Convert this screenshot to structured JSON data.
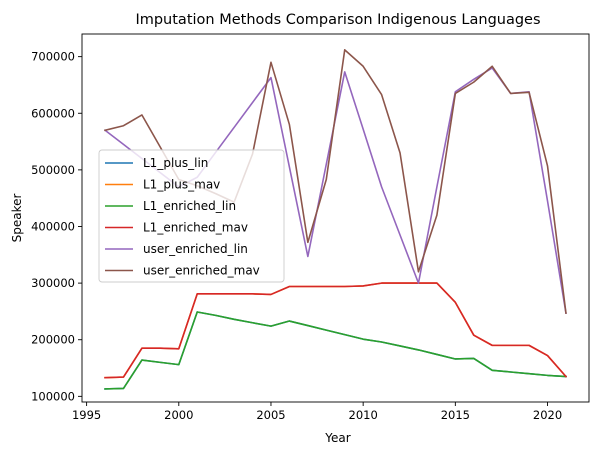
{
  "chart_data": {
    "type": "line",
    "title": "Imputation Methods Comparison Indigenous Languages",
    "xlabel": "Year",
    "ylabel": "Speaker",
    "xlim": [
      1994.75,
      2022.25
    ],
    "ylim": [
      90000,
      740000
    ],
    "xticks": [
      1995,
      2000,
      2005,
      2010,
      2015,
      2020
    ],
    "xtick_labels": [
      "1995",
      "2000",
      "2005",
      "2010",
      "2015",
      "2020"
    ],
    "yticks": [
      100000,
      200000,
      300000,
      400000,
      500000,
      600000,
      700000
    ],
    "ytick_labels": [
      "100000",
      "200000",
      "300000",
      "400000",
      "500000",
      "600000",
      "700000"
    ],
    "grid": false,
    "legend_position": "center-left",
    "x": [
      1996,
      1997,
      1998,
      1999,
      2000,
      2001,
      2002,
      2003,
      2004,
      2005,
      2006,
      2007,
      2008,
      2009,
      2010,
      2011,
      2012,
      2013,
      2014,
      2015,
      2016,
      2017,
      2018,
      2019,
      2020,
      2021
    ],
    "series": [
      {
        "name": "L1_plus_lin",
        "color": "#1f77b4",
        "values": [
          113000,
          114000,
          164000,
          160000,
          156000,
          249000,
          243000,
          236000,
          230000,
          224000,
          233000,
          225000,
          217000,
          209000,
          201000,
          196000,
          189000,
          182000,
          174000,
          166000,
          167000,
          146000,
          143000,
          140000,
          137000,
          135000
        ]
      },
      {
        "name": "L1_plus_mav",
        "color": "#ff7f0e",
        "values": [
          133000,
          134000,
          185000,
          185000,
          184000,
          281000,
          281000,
          281000,
          281000,
          280000,
          294000,
          294000,
          294000,
          294000,
          295000,
          300000,
          300000,
          300000,
          300000,
          266000,
          208000,
          190000,
          190000,
          190000,
          172000,
          135000
        ]
      },
      {
        "name": "L1_enriched_lin",
        "color": "#2ca02c",
        "values": [
          113000,
          114000,
          164000,
          160000,
          156000,
          249000,
          243000,
          236000,
          230000,
          224000,
          233000,
          225000,
          217000,
          209000,
          201000,
          196000,
          189000,
          182000,
          174000,
          166000,
          167000,
          146000,
          143000,
          140000,
          137000,
          135000
        ]
      },
      {
        "name": "L1_enriched_mav",
        "color": "#d62728",
        "values": [
          133000,
          134000,
          185000,
          185000,
          184000,
          281000,
          281000,
          281000,
          281000,
          280000,
          294000,
          294000,
          294000,
          294000,
          295000,
          300000,
          300000,
          300000,
          300000,
          266000,
          208000,
          190000,
          190000,
          190000,
          172000,
          135000
        ]
      },
      {
        "name": "user_enriched_lin",
        "color": "#9467bd",
        "values": [
          570000,
          545000,
          520000,
          495000,
          470000,
          487000,
          531000,
          575000,
          619000,
          663000,
          505000,
          347000,
          510000,
          673000,
          572000,
          470000,
          385000,
          300000,
          470000,
          638000,
          660000,
          680000,
          635000,
          638000,
          445000,
          247000
        ]
      },
      {
        "name": "user_enriched_mav",
        "color": "#8c564b",
        "values": [
          570000,
          578000,
          597000,
          540000,
          483000,
          472000,
          458000,
          443000,
          528000,
          690000,
          580000,
          372000,
          483000,
          712000,
          683000,
          633000,
          530000,
          320000,
          420000,
          635000,
          655000,
          683000,
          635000,
          637000,
          507000,
          247000
        ]
      }
    ]
  }
}
